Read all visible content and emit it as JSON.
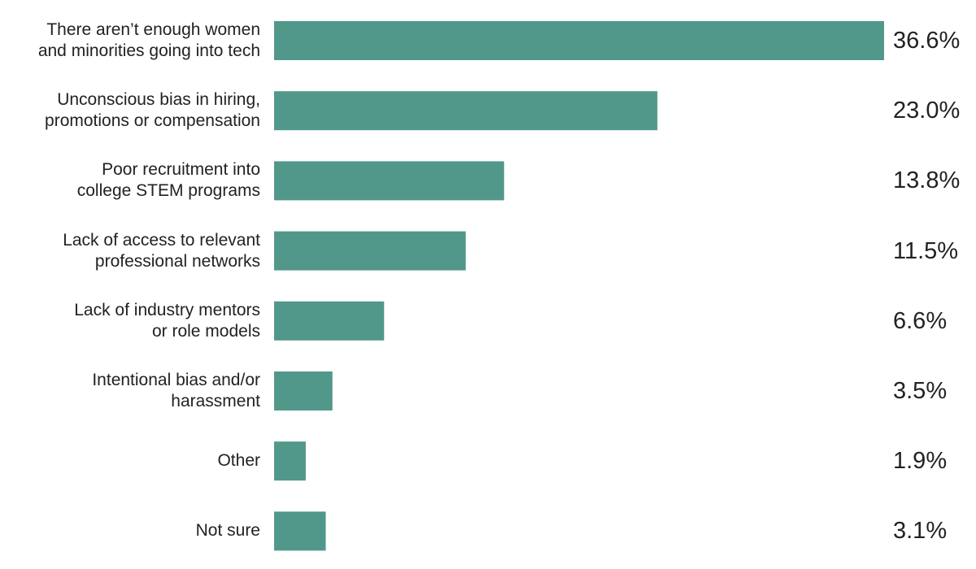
{
  "chart_data": {
    "type": "bar",
    "orientation": "horizontal",
    "color": "#52988a",
    "categories": [
      "There aren’t enough women\nand minorities going into tech",
      "Unconscious bias in hiring,\npromotions or compensation",
      "Poor recruitment into\ncollege STEM programs",
      "Lack of access to relevant\nprofessional networks",
      "Lack of industry mentors\nor role models",
      "Intentional bias and/or\nharassment",
      "Other",
      "Not sure"
    ],
    "values": [
      36.6,
      23.0,
      13.8,
      11.5,
      6.6,
      3.5,
      1.9,
      3.1
    ],
    "value_labels": [
      "36.6%",
      "23.0%",
      "13.8%",
      "11.5%",
      "6.6%",
      "3.5%",
      "1.9%",
      "3.1%"
    ]
  }
}
